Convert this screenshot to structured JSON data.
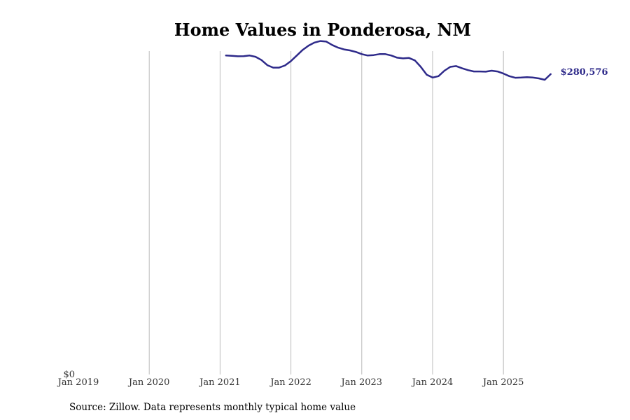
{
  "chart_data": {
    "type": "line",
    "title": "Home Values in Ponderosa, NM",
    "xlabel": "",
    "ylabel": "",
    "x_ticks": [
      "Jan 2019",
      "Jan 2020",
      "Jan 2021",
      "Jan 2022",
      "Jan 2023",
      "Jan 2024",
      "Jan 2025"
    ],
    "y_ticks": [
      "$0"
    ],
    "xlim": [
      "2019-01",
      "2025-12"
    ],
    "ylim": [
      0,
      308000
    ],
    "grid": {
      "vertical": true,
      "horizontal": false
    },
    "line_color": "#2e2a8a",
    "grid_color": "#bbbbbb",
    "series": [
      {
        "end_label": "$280,576",
        "x": [
          "2021-02",
          "2021-03",
          "2021-04",
          "2021-05",
          "2021-06",
          "2021-07",
          "2021-08",
          "2021-09",
          "2021-10",
          "2021-11",
          "2021-12",
          "2022-01",
          "2022-02",
          "2022-03",
          "2022-04",
          "2022-05",
          "2022-06",
          "2022-07",
          "2022-08",
          "2022-09",
          "2022-10",
          "2022-11",
          "2022-12",
          "2023-01",
          "2023-02",
          "2023-03",
          "2023-04",
          "2023-05",
          "2023-06",
          "2023-07",
          "2023-08",
          "2023-09",
          "2023-10",
          "2023-11",
          "2023-12",
          "2024-01",
          "2024-02",
          "2024-03",
          "2024-04",
          "2024-05",
          "2024-06",
          "2024-07",
          "2024-08",
          "2024-09",
          "2024-10",
          "2024-11",
          "2024-12",
          "2025-01",
          "2025-02",
          "2025-03",
          "2025-04",
          "2025-05",
          "2025-06",
          "2025-07",
          "2025-08",
          "2025-09"
        ],
        "values": [
          298000,
          297700,
          297300,
          297400,
          298000,
          296800,
          293800,
          289000,
          286700,
          286700,
          288700,
          292800,
          298000,
          303300,
          307300,
          310100,
          311500,
          311000,
          307800,
          305300,
          303700,
          302800,
          301300,
          299300,
          298000,
          298400,
          299300,
          299300,
          298000,
          296000,
          295300,
          295700,
          293400,
          287400,
          280100,
          277400,
          278700,
          283800,
          287400,
          288100,
          286000,
          284300,
          283100,
          283100,
          282900,
          283800,
          283100,
          281100,
          278700,
          277200,
          277400,
          277700,
          277400,
          276600,
          275300,
          280576
        ]
      }
    ]
  },
  "source": "Source: Zillow. Data represents monthly typical home value"
}
